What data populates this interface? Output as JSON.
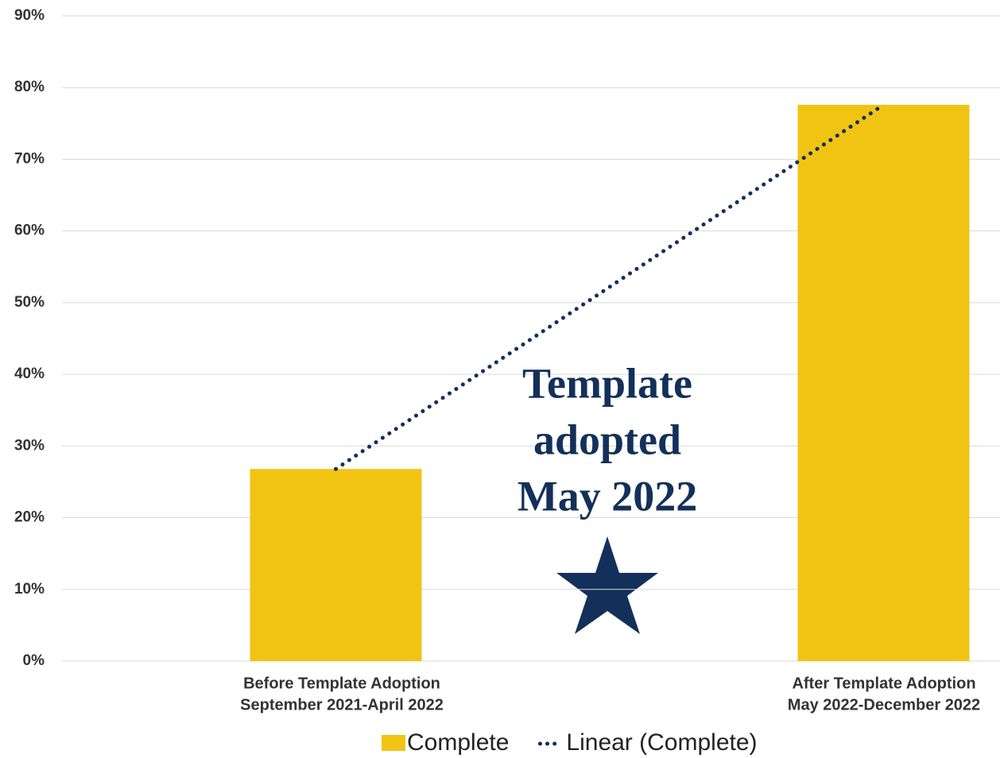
{
  "chart_data": {
    "type": "bar",
    "categories": [
      [
        "Before Template Adoption",
        "September 2021-April 2022"
      ],
      [
        "After Template Adoption",
        "May 2022-December 2022"
      ]
    ],
    "series": [
      {
        "name": "Complete",
        "color": "#f1c414",
        "values": [
          26.8,
          77.6
        ]
      },
      {
        "name": "Linear (Complete)",
        "color": "#13305a",
        "type": "trendline",
        "values": [
          26.8,
          77.6
        ]
      }
    ],
    "ylim": [
      0,
      90
    ],
    "yticks": [
      {
        "value": 0,
        "label": "0%"
      },
      {
        "value": 10,
        "label": "10%"
      },
      {
        "value": 20,
        "label": "20%"
      },
      {
        "value": 30,
        "label": "30%"
      },
      {
        "value": 40,
        "label": "40%"
      },
      {
        "value": 50,
        "label": "50%"
      },
      {
        "value": 60,
        "label": "60%"
      },
      {
        "value": 70,
        "label": "70%"
      },
      {
        "value": 80,
        "label": "80%"
      },
      {
        "value": 90,
        "label": "90%"
      }
    ],
    "grid": true,
    "legend": "bottom",
    "annotation": [
      "Template",
      "adopted",
      "May 2022"
    ]
  }
}
